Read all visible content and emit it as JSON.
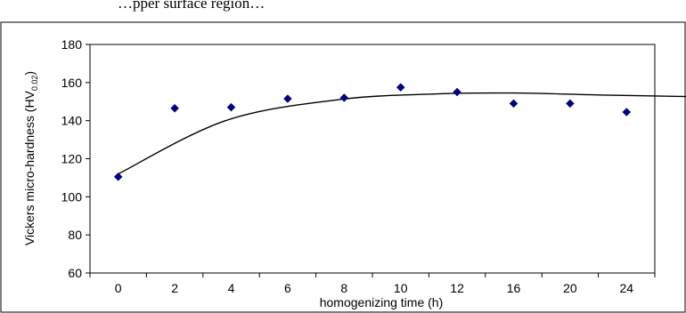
{
  "header_text": "…pper surface region…",
  "chart_data": {
    "type": "scatter",
    "title": "",
    "xlabel": "homogenizing time (h)",
    "ylabel_main": "Vickers micro-hardness (HV",
    "ylabel_sub": "0.02",
    "ylabel_close": ")",
    "x_categories": [
      "0",
      "2",
      "4",
      "6",
      "8",
      "10",
      "12",
      "16",
      "20",
      "24"
    ],
    "series": [
      {
        "values": [
          110.5,
          146.5,
          147,
          151.5,
          152,
          157.5,
          155,
          149,
          149,
          144.5
        ],
        "color": "#000080",
        "marker": "diamond"
      }
    ],
    "trendline": {
      "color": "#000000",
      "values": [
        112,
        140,
        151,
        154,
        154.5,
        153.5,
        152.5,
        152,
        151.5,
        149.5,
        145
      ]
    },
    "trendline_x": [
      0,
      1.9,
      3.9,
      5.6,
      7.0,
      8.5,
      10.5,
      12.6,
      15.5,
      18.5,
      20.8
    ],
    "ylim": [
      60,
      180
    ],
    "yticks": [
      60,
      80,
      100,
      120,
      140,
      160,
      180
    ],
    "grid": false,
    "legend": "none"
  }
}
